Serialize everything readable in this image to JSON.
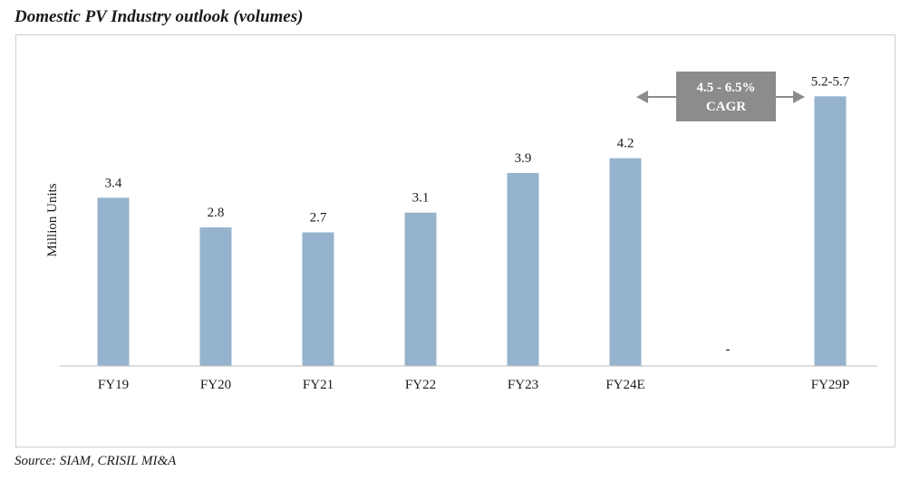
{
  "page": {
    "title": "Domestic PV Industry outlook (volumes)",
    "source": "Source: SIAM, CRISIL MI&A"
  },
  "chart_data": {
    "type": "bar",
    "title": "",
    "xlabel": "",
    "ylabel": "Million Units",
    "categories": [
      "FY19",
      "FY20",
      "FY21",
      "FY22",
      "FY23",
      "FY24E",
      "",
      "FY29P"
    ],
    "values": [
      3.4,
      2.8,
      2.7,
      3.1,
      3.9,
      4.2,
      null,
      5.45
    ],
    "data_labels": [
      "3.4",
      "2.8",
      "2.7",
      "3.1",
      "3.9",
      "4.2",
      "-",
      "5.2-5.7"
    ],
    "ylim": [
      0,
      6.5
    ],
    "grid": false,
    "legend": "none",
    "bar_color": "#95b3cd",
    "annotation": {
      "line1": "4.5 - 6.5%",
      "line2": "CAGR",
      "box_color": "#8c8c8c",
      "arrow_color": "#8c8c8c",
      "text_color": "#ffffff"
    }
  }
}
